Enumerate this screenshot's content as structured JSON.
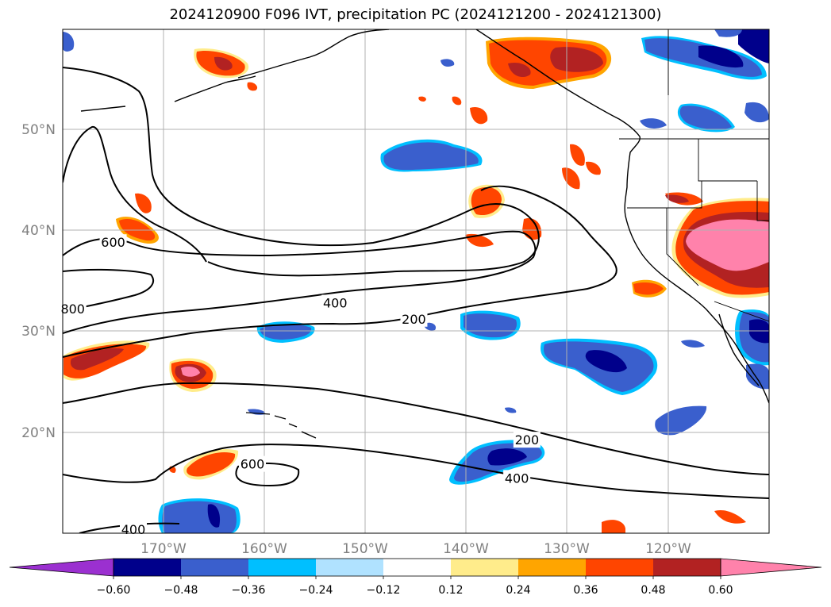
{
  "title": "2024120900 F096 IVT, precipitation PC (2024121200 - 2024121300)",
  "colors": {
    "coast": "#000000",
    "grid": "#b0b0b0",
    "axis_label": "#808080",
    "contour": "#000000"
  },
  "map": {
    "lon_range": [
      -180,
      -110
    ],
    "lat_range": [
      10,
      60
    ],
    "lat_labels": [
      {
        "lat": 50,
        "text": "50°N"
      },
      {
        "lat": 40,
        "text": "40°N"
      },
      {
        "lat": 30,
        "text": "30°N"
      },
      {
        "lat": 20,
        "text": "20°N"
      }
    ],
    "lon_labels": [
      {
        "lon": -170,
        "text": "170°W"
      },
      {
        "lon": -160,
        "text": "160°W"
      },
      {
        "lon": -150,
        "text": "150°W"
      },
      {
        "lon": -140,
        "text": "140°W"
      },
      {
        "lon": -130,
        "text": "130°W"
      },
      {
        "lon": -120,
        "text": "120°W"
      }
    ]
  },
  "contour_labels": [
    {
      "text": "600",
      "lon": -175,
      "lat": 38.8
    },
    {
      "text": "800",
      "lon": -179,
      "lat": 32.2
    },
    {
      "text": "400",
      "lon": -153,
      "lat": 32.8
    },
    {
      "text": "200",
      "lon": -145.2,
      "lat": 31.2
    },
    {
      "text": "600",
      "lon": -161.2,
      "lat": 16.8
    },
    {
      "text": "200",
      "lon": -134,
      "lat": 19.2
    },
    {
      "text": "400",
      "lon": -135,
      "lat": 15.4
    },
    {
      "text": "400",
      "lon": -173,
      "lat": 10.3
    }
  ],
  "colorbar": {
    "colors": [
      "#9b30d0",
      "#00008b",
      "#3a5fcd",
      "#00bfff",
      "#b0e2ff",
      "#ffffff",
      "#ffec8b",
      "#ffa500",
      "#ff4500",
      "#b22222",
      "#ff82ab"
    ],
    "ticks": [
      "−0.60",
      "−0.48",
      "−0.36",
      "−0.24",
      "−0.12",
      "0.12",
      "0.24",
      "0.36",
      "0.48",
      "0.60"
    ]
  }
}
